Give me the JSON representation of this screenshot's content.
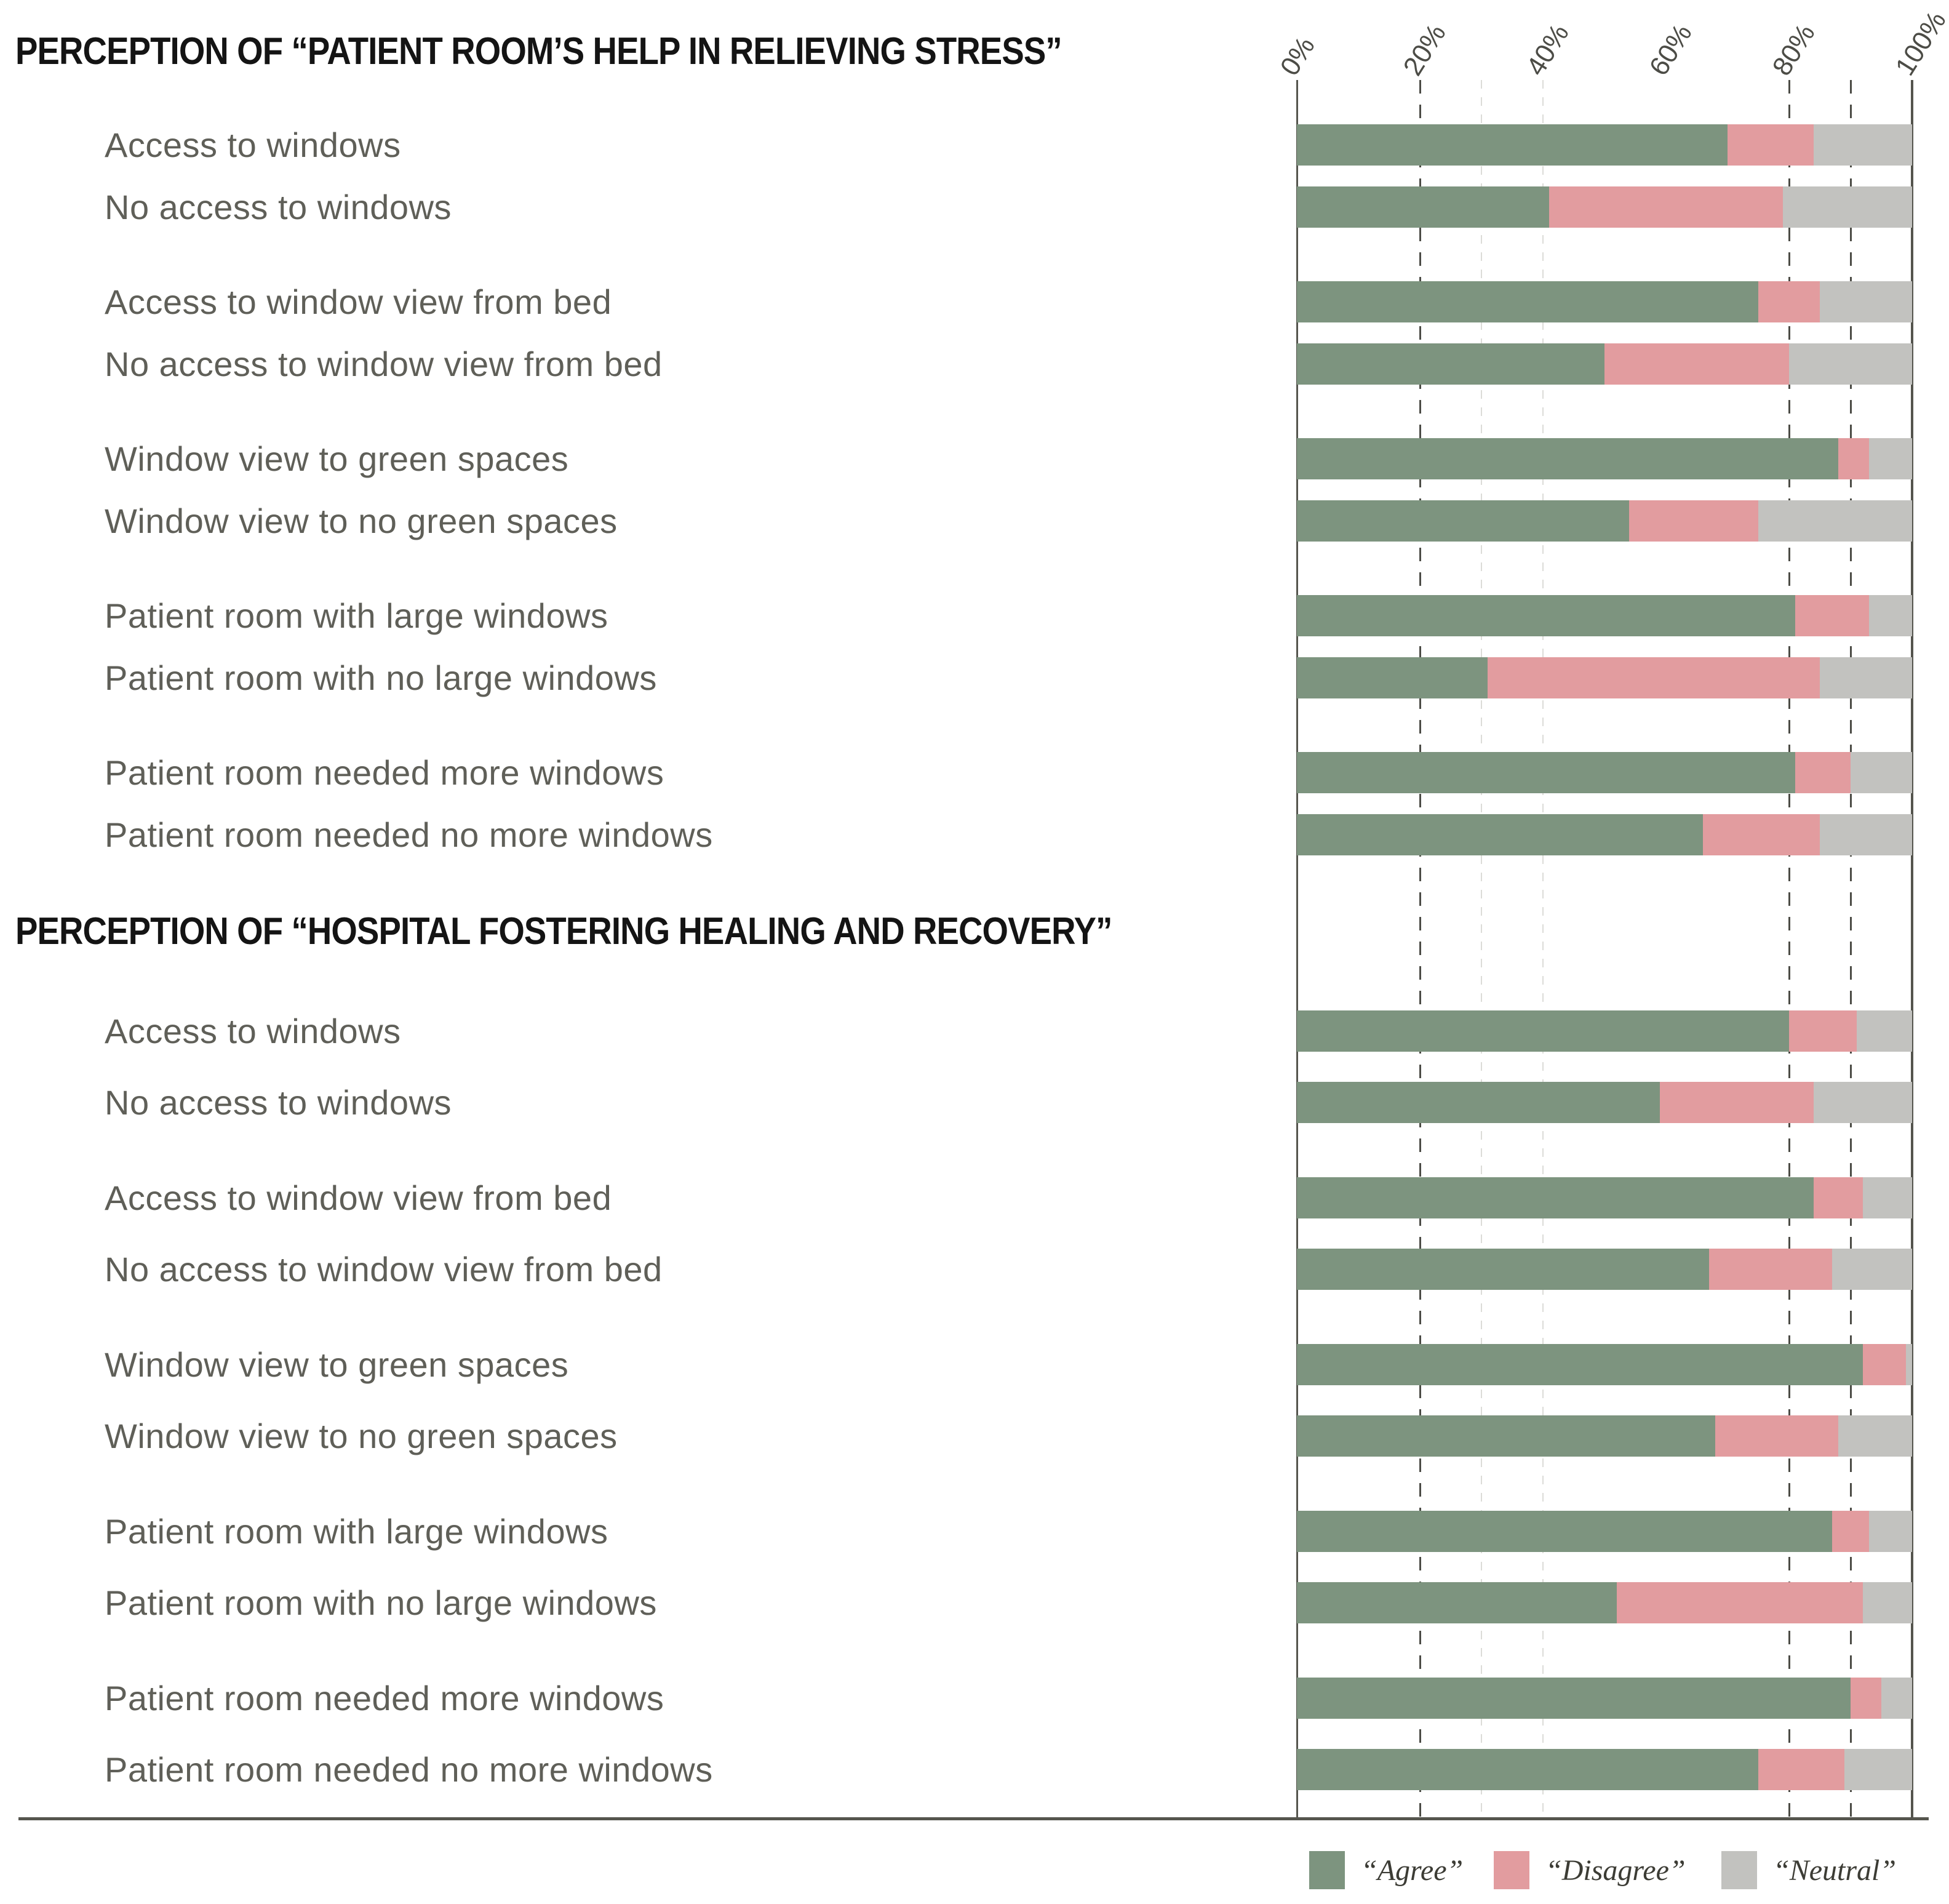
{
  "colors": {
    "agree": "#7d947f",
    "disagree": "#e29c9f",
    "neutral": "#c2c2bf",
    "grid_dark": "#4c4c46",
    "grid_light": "#dcdcd8",
    "axis_line": "#55554e",
    "row_label_text": "#5f5f58",
    "title_text": "#141414"
  },
  "axis": {
    "ticks": [
      {
        "label": "0%",
        "value": 0
      },
      {
        "label": "20%",
        "value": 20
      },
      {
        "label": "40%",
        "value": 40
      },
      {
        "label": "60%",
        "value": 60
      },
      {
        "label": "80%",
        "value": 80
      },
      {
        "label": "100%",
        "value": 100
      }
    ],
    "gridlines": {
      "solid": [
        0,
        100
      ],
      "dashed": [
        20,
        80,
        90
      ],
      "light": [
        30,
        40
      ]
    },
    "xlim": [
      0,
      100
    ]
  },
  "legend": {
    "items": [
      "“Agree”",
      "“Disagree”",
      "“Neutral”"
    ]
  },
  "chart_data": [
    {
      "type": "bar",
      "orientation": "horizontal",
      "stacked": true,
      "title": "PERCEPTION OF “PATIENT ROOM’S HELP IN RELIEVING STRESS”",
      "xlabel": "",
      "ylabel": "",
      "xlim": [
        0,
        100
      ],
      "grid": true,
      "legend_position": "bottom",
      "categories": [
        "Access to windows",
        "No access to windows",
        "Access to window view from bed",
        "No access to window view from bed",
        "Window view to green spaces",
        "Window view to no green spaces",
        "Patient room with large windows",
        "Patient room with no large windows",
        "Patient room needed more windows",
        "Patient room needed no more windows"
      ],
      "series": [
        {
          "name": "“Agree”",
          "color": "#7d947f",
          "values": [
            70,
            41,
            75,
            50,
            88,
            54,
            81,
            31,
            81,
            66
          ]
        },
        {
          "name": "“Disagree”",
          "color": "#e29c9f",
          "values": [
            14,
            38,
            10,
            30,
            5,
            21,
            12,
            54,
            9,
            19
          ]
        },
        {
          "name": "“Neutral”",
          "color": "#c2c2bf",
          "values": [
            16,
            21,
            15,
            20,
            7,
            25,
            7,
            15,
            10,
            15
          ]
        }
      ]
    },
    {
      "type": "bar",
      "orientation": "horizontal",
      "stacked": true,
      "title": "PERCEPTION OF “HOSPITAL FOSTERING HEALING AND RECOVERY”",
      "xlabel": "",
      "ylabel": "",
      "xlim": [
        0,
        100
      ],
      "grid": true,
      "legend_position": "bottom",
      "categories": [
        "Access to windows",
        "No access to windows",
        "Access to window view from bed",
        "No access to window view from bed",
        "Window view to green spaces",
        "Window view to no green spaces",
        "Patient room with large windows",
        "Patient room with no large windows",
        "Patient room needed more windows",
        "Patient room needed no more windows"
      ],
      "series": [
        {
          "name": "“Agree”",
          "color": "#7d947f",
          "values": [
            80,
            59,
            84,
            67,
            92,
            68,
            87,
            52,
            90,
            75
          ]
        },
        {
          "name": "“Disagree”",
          "color": "#e29c9f",
          "values": [
            11,
            25,
            8,
            20,
            7,
            20,
            6,
            40,
            5,
            14
          ]
        },
        {
          "name": "“Neutral”",
          "color": "#c2c2bf",
          "values": [
            9,
            16,
            8,
            13,
            1,
            12,
            7,
            8,
            5,
            11
          ]
        }
      ]
    }
  ]
}
